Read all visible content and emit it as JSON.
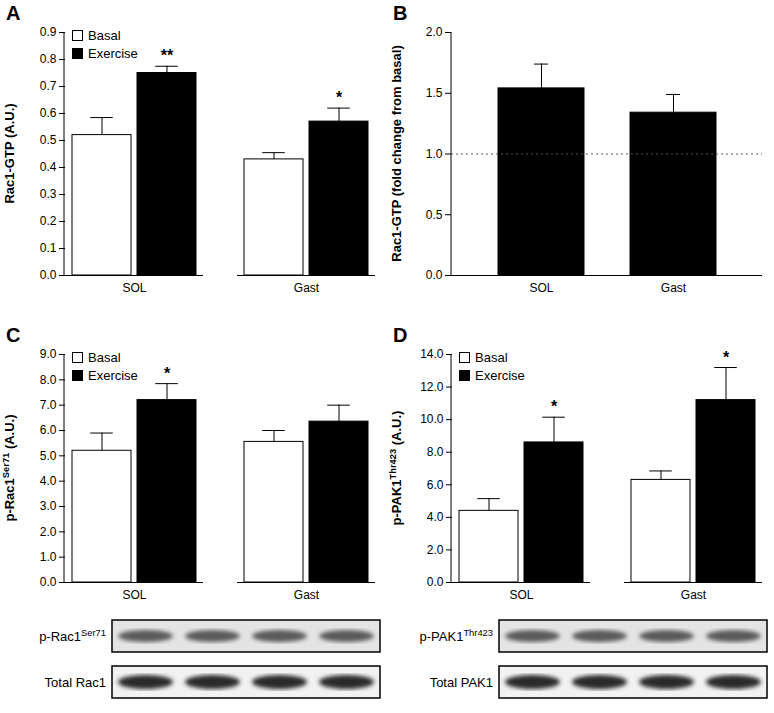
{
  "chart_data": [
    {
      "panel": "A",
      "type": "bar",
      "categories": [
        "SOL",
        "Gast"
      ],
      "series": [
        {
          "name": "Basal",
          "color": "#ffffff",
          "values": [
            0.52,
            0.43
          ],
          "errors": [
            0.065,
            0.025
          ]
        },
        {
          "name": "Exercise",
          "color": "#000000",
          "values": [
            0.75,
            0.57
          ],
          "errors": [
            0.025,
            0.05
          ]
        }
      ],
      "ylabel": "Rac1-GTP (A.U.)",
      "ylim": [
        0,
        0.9
      ],
      "yticks": [
        {
          "value": 0,
          "label": "0.0"
        },
        0.1,
        0.2,
        0.3,
        0.4,
        0.5,
        0.6,
        0.7,
        0.8,
        0.9
      ],
      "legend": "top-left",
      "grid": false,
      "annotations": [
        {
          "text": "**",
          "category": "SOL",
          "series": "Exercise"
        },
        {
          "text": "*",
          "category": "Gast",
          "series": "Exercise"
        }
      ]
    },
    {
      "panel": "B",
      "type": "bar",
      "categories": [
        "SOL",
        "Gast"
      ],
      "values": [
        1.54,
        1.34
      ],
      "errors": [
        0.2,
        0.15
      ],
      "color": "#000000",
      "ylabel": "Rac1-GTP (fold change from basal)",
      "ylim": [
        0,
        2
      ],
      "yticks": [
        {
          "value": 0,
          "label": "0.0"
        },
        0.5,
        {
          "value": 1,
          "label": "1.0"
        },
        1.5,
        {
          "value": 2,
          "label": "2.0"
        }
      ],
      "reference_line": {
        "y": 1,
        "line_style": "dotted"
      },
      "grid": false
    },
    {
      "panel": "C",
      "type": "bar",
      "categories": [
        "SOL",
        "Gast"
      ],
      "series": [
        {
          "name": "Basal",
          "color": "#ffffff",
          "values": [
            5.2,
            5.55
          ],
          "errors": [
            0.7,
            0.45
          ]
        },
        {
          "name": "Exercise",
          "color": "#000000",
          "values": [
            7.2,
            6.35
          ],
          "errors": [
            0.65,
            0.65
          ]
        }
      ],
      "ylabel": "p-Rac1Ser71 (A.U.)",
      "ylabel_superscript": "Ser71",
      "ylim": [
        0,
        9
      ],
      "yticks": [
        {
          "value": 0,
          "label": "0.0"
        },
        {
          "value": 1,
          "label": "1.0"
        },
        {
          "value": 2,
          "label": "2.0"
        },
        {
          "value": 3,
          "label": "3.0"
        },
        {
          "value": 4,
          "label": "4.0"
        },
        {
          "value": 5,
          "label": "5.0"
        },
        {
          "value": 6,
          "label": "6.0"
        },
        {
          "value": 7,
          "label": "7.0"
        },
        {
          "value": 8,
          "label": "8.0"
        },
        {
          "value": 9,
          "label": "9.0"
        }
      ],
      "legend": "top-left",
      "grid": false,
      "annotations": [
        {
          "text": "*",
          "category": "SOL",
          "series": "Exercise"
        }
      ],
      "blots": [
        {
          "label": "p-Rac1Ser71",
          "superscript": "Ser71"
        },
        {
          "label": "Total Rac1"
        }
      ]
    },
    {
      "panel": "D",
      "type": "bar",
      "categories": [
        "SOL",
        "Gast"
      ],
      "series": [
        {
          "name": "Basal",
          "color": "#ffffff",
          "values": [
            4.4,
            6.3
          ],
          "errors": [
            0.75,
            0.55
          ]
        },
        {
          "name": "Exercise",
          "color": "#000000",
          "values": [
            8.6,
            11.2
          ],
          "errors": [
            1.55,
            2.0
          ]
        }
      ],
      "ylabel": "p-PAK1Thr423 (A.U.)",
      "ylabel_superscript": "Thr423",
      "ylim": [
        0,
        14
      ],
      "yticks": [
        {
          "value": 0,
          "label": "0.0"
        },
        {
          "value": 2,
          "label": "2.0"
        },
        {
          "value": 4,
          "label": "4.0"
        },
        {
          "value": 6,
          "label": "6.0"
        },
        {
          "value": 8,
          "label": "8.0"
        },
        {
          "value": 10,
          "label": "10.0"
        },
        {
          "value": 12,
          "label": "12.0"
        },
        {
          "value": 14,
          "label": "14.0"
        }
      ],
      "legend": "top-left",
      "grid": false,
      "annotations": [
        {
          "text": "*",
          "category": "SOL",
          "series": "Exercise"
        },
        {
          "text": "*",
          "category": "Gast",
          "series": "Exercise"
        }
      ],
      "blots": [
        {
          "label": "p-PAK1Thr423",
          "superscript": "Thr423"
        },
        {
          "label": "Total PAK1"
        }
      ]
    }
  ]
}
